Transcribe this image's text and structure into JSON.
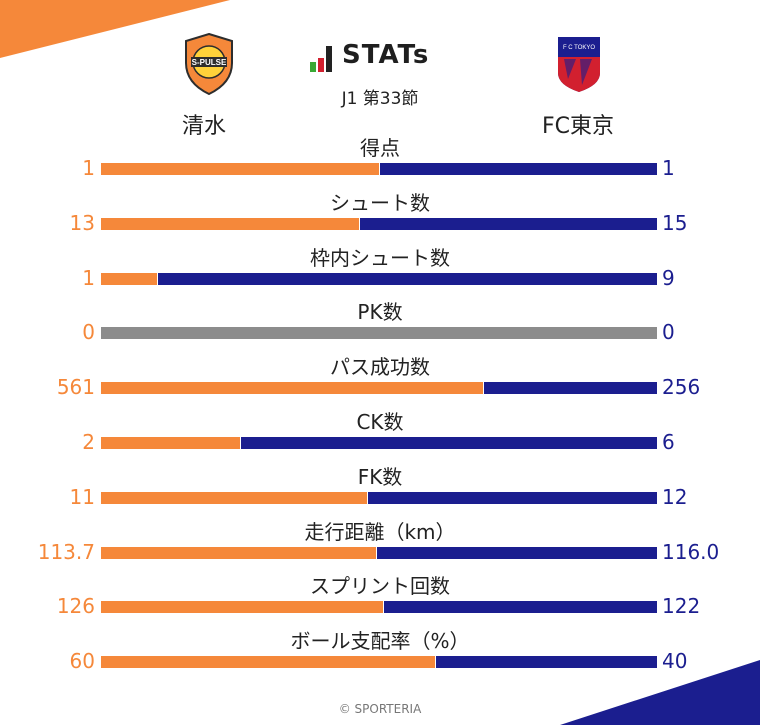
{
  "header": {
    "title": "STATs",
    "subtitle": "J1 第33節",
    "home_team": "清水",
    "away_team": "FC東京",
    "home_logo_text": "S-PULSE",
    "away_logo_text": "F C TOKYO"
  },
  "footer": "© SPORTERIA",
  "colors": {
    "home": "#f5883a",
    "away": "#1b1e8f",
    "neutral": "#8c8c8c",
    "corner_orange": "#f5883a",
    "corner_navy": "#1b1e8f"
  },
  "chart_data": {
    "type": "bar",
    "orientation": "horizontal-diverging",
    "series": [
      {
        "name": "清水",
        "values": [
          "1",
          "13",
          "1",
          "0",
          "561",
          "2",
          "11",
          "113.7",
          "126",
          "60"
        ]
      },
      {
        "name": "FC東京",
        "values": [
          "1",
          "15",
          "9",
          "0",
          "256",
          "6",
          "12",
          "116.0",
          "122",
          "40"
        ]
      }
    ],
    "categories": [
      "得点",
      "シュート数",
      "枠内シュート数",
      "PK数",
      "パス成功数",
      "CK数",
      "FK数",
      "走行距離（km）",
      "スプリント回数",
      "ボール支配率（%）"
    ]
  }
}
